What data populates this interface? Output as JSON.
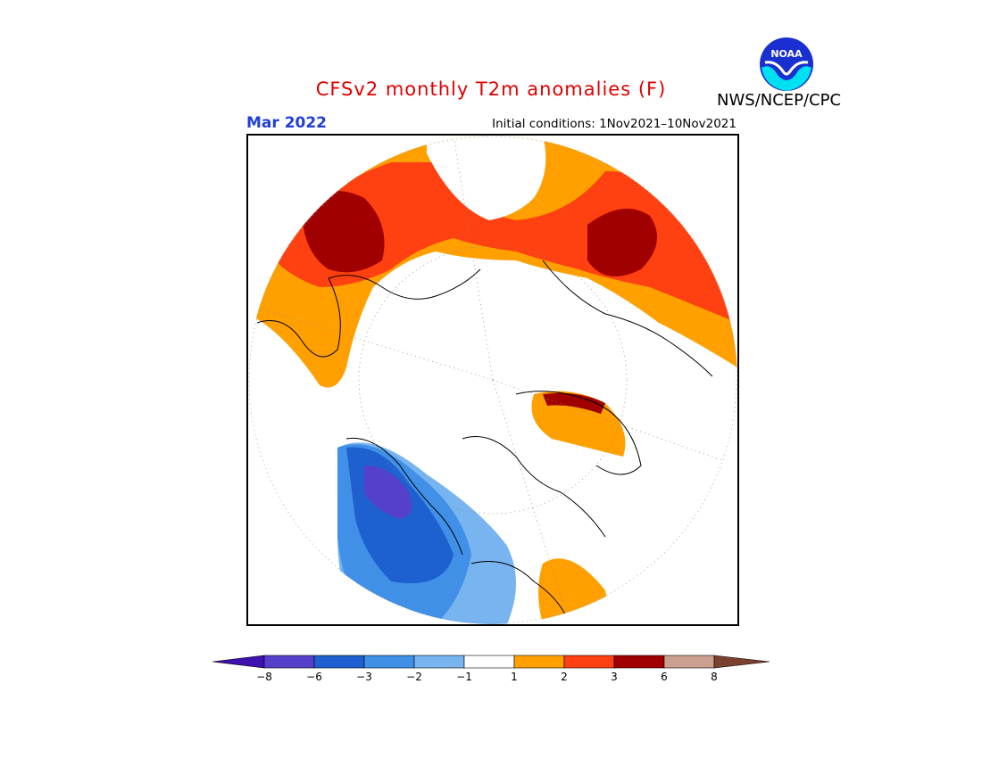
{
  "header": {
    "title": "CFSv2 monthly T2m anomalies (F)",
    "month": "Mar 2022",
    "initial_conditions": "Initial conditions: 1Nov2021–10Nov2021",
    "agency": "NWS/NCEP/CPC",
    "logo_text": "NOAA"
  },
  "colorbar": {
    "colors": [
      "#4010b0",
      "#5540cc",
      "#1e60d0",
      "#4090e8",
      "#78b4f0",
      "#ffffff",
      "#ffa000",
      "#ff4010",
      "#a00000",
      "#cca090",
      "#7a4030"
    ],
    "ticks": [
      "−8",
      "−6",
      "−3",
      "−2",
      "−1",
      "1",
      "2",
      "3",
      "6",
      "8"
    ]
  },
  "colors": {
    "warm_1": "#ffa000",
    "warm_2": "#ff4010",
    "warm_3": "#a00000",
    "cool_1": "#78b4f0",
    "cool_2": "#4090e8",
    "cool_3": "#1e60d0",
    "cool_4": "#5540cc"
  }
}
